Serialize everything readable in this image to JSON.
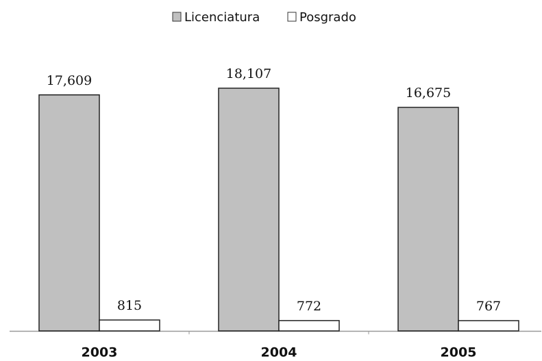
{
  "chart_data": {
    "type": "bar",
    "categories": [
      "2003",
      "2004",
      "2005"
    ],
    "series": [
      {
        "name": "Licenciatura",
        "color": "#c0c0c0",
        "values": [
          17609,
          18107,
          16675
        ],
        "value_labels": [
          "17,609",
          "18,107",
          "16,675"
        ]
      },
      {
        "name": "Posgrado",
        "color": "#ffffff",
        "values": [
          815,
          772,
          767
        ]
      }
    ],
    "legend": "top"
  }
}
